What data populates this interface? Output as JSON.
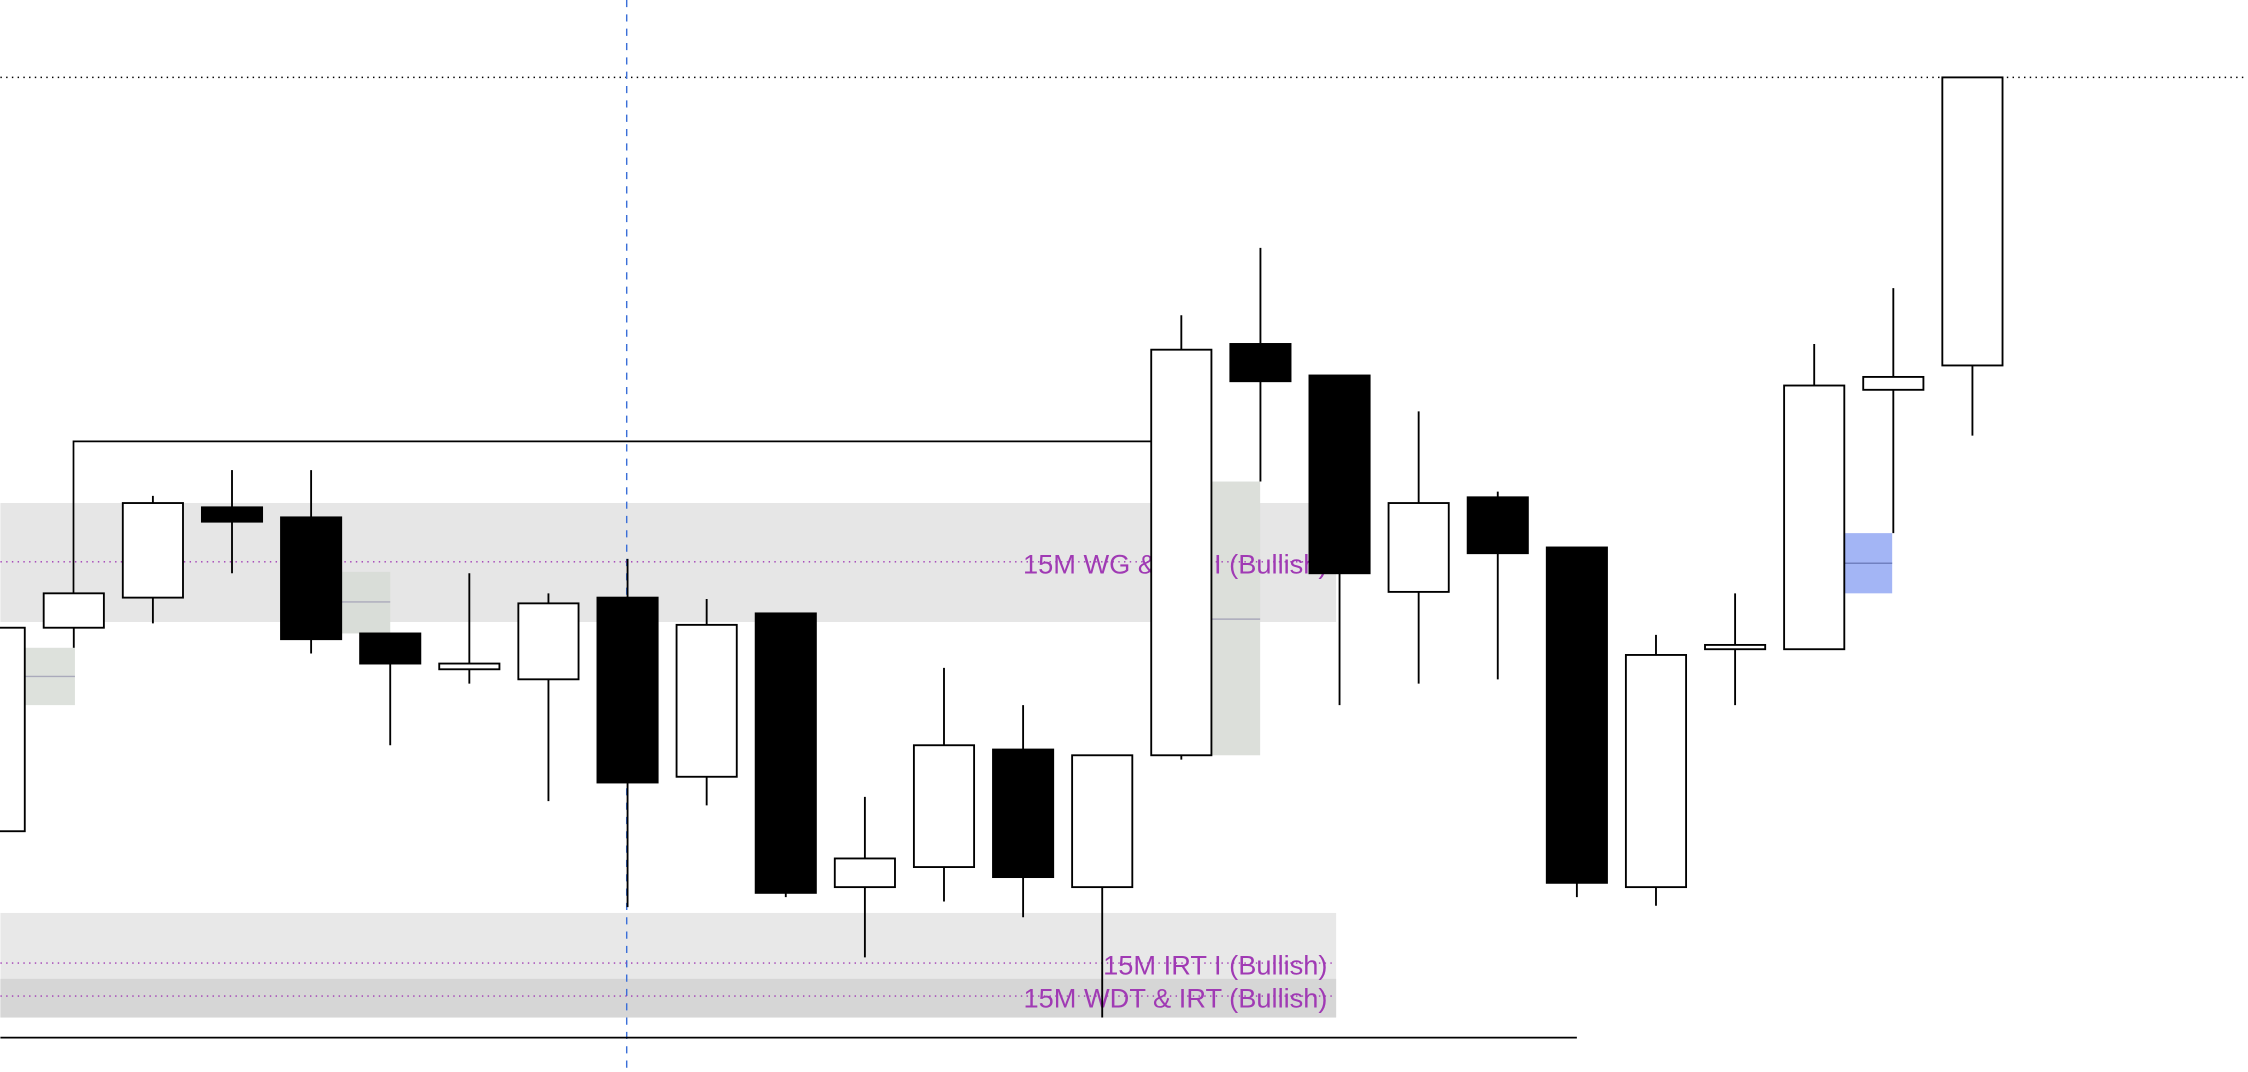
{
  "chart_data": {
    "type": "candlestick",
    "categories": [
      null,
      null,
      null,
      null,
      null,
      null,
      null,
      null,
      null,
      null,
      null,
      null,
      null,
      null,
      null,
      null,
      null,
      null,
      null,
      null,
      null,
      null,
      null,
      null,
      null,
      null
    ],
    "open": [
      168,
      310,
      331,
      394,
      387,
      306,
      281,
      274,
      331,
      206,
      320,
      129,
      143,
      225,
      129,
      221,
      508,
      486,
      335,
      401,
      366,
      129,
      295,
      295,
      476,
      493
    ],
    "high": [
      310,
      334,
      402,
      420,
      420,
      306,
      348,
      334,
      358,
      330,
      320,
      192,
      282,
      256,
      221,
      528,
      575,
      486,
      461,
      405,
      366,
      305,
      334,
      508,
      547,
      694
    ],
    "low": [
      168,
      296,
      313,
      348,
      292,
      228,
      271,
      189,
      115,
      186,
      122,
      80,
      119,
      108,
      38,
      218,
      412,
      256,
      271,
      274,
      122,
      116,
      256,
      295,
      376,
      444
    ],
    "close": [
      310,
      334,
      397,
      384,
      302,
      285,
      285,
      327,
      202,
      312,
      125,
      149,
      228,
      136,
      221,
      504,
      482,
      348,
      397,
      362,
      132,
      291,
      298,
      479,
      485,
      694
    ],
    "up_color": "#ffffff",
    "down_color": "#000000",
    "ylim": [
      0,
      748
    ],
    "levels": [
      {
        "label": "15M WG & IRT I (Bullish)",
        "value": 356
      },
      {
        "label": "15M IRT I (Bullish)",
        "value": 76
      },
      {
        "label": "15M WDT & IRT (Bullish)",
        "value": 53
      }
    ]
  }
}
